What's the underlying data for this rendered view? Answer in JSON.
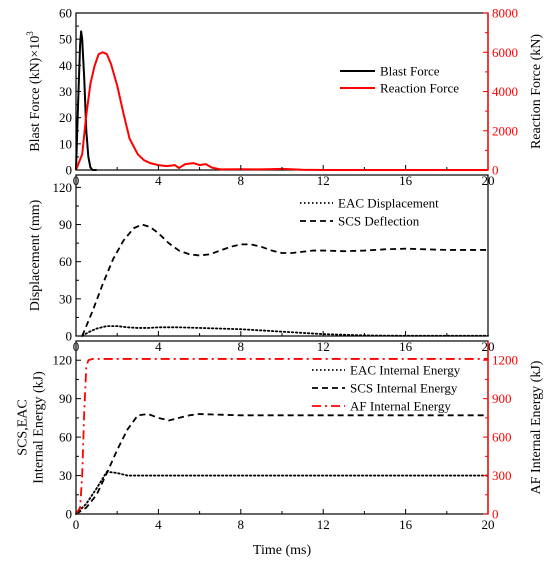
{
  "chart_data": [
    {
      "type": "line",
      "title": "",
      "xlabel": "",
      "xlim": [
        0,
        20
      ],
      "x_ticks": [
        "0",
        "4",
        "8",
        "12",
        "16",
        "20"
      ],
      "ylabel": "Blast Force (kN)×10³",
      "ylabel_main": "Blast Force (kN)×10",
      "ylabel_sup": "3",
      "ylim": [
        0,
        60
      ],
      "y_ticks": [
        "0",
        "10",
        "20",
        "30",
        "40",
        "50",
        "60"
      ],
      "ylabel_right": "Reaction Force (kN)",
      "ylim_right": [
        0,
        8000
      ],
      "y_ticks_right": [
        "0",
        "2000",
        "4000",
        "6000",
        "8000"
      ],
      "right_axis_color": "#ff0000",
      "legend_position": "right",
      "grid": false,
      "series": [
        {
          "name": "Blast Force",
          "axis": "left",
          "color": "#000000",
          "style": "solid",
          "x": [
            0,
            0.1,
            0.2,
            0.25,
            0.3,
            0.4,
            0.5,
            0.6,
            0.7,
            0.8,
            1.0
          ],
          "y": [
            0,
            25,
            48,
            53,
            50,
            35,
            15,
            5,
            1,
            0,
            0
          ]
        },
        {
          "name": "Reaction Force",
          "axis": "right",
          "color": "#ff0000",
          "style": "solid",
          "x": [
            0,
            0.3,
            0.5,
            0.7,
            0.9,
            1.1,
            1.3,
            1.5,
            1.7,
            2.0,
            2.3,
            2.6,
            3.0,
            3.3,
            3.6,
            4.0,
            4.4,
            4.8,
            5.0,
            5.3,
            5.7,
            6.0,
            6.3,
            6.6,
            7.0,
            8.0,
            9.0,
            10.0,
            11.0,
            12.0,
            20.0
          ],
          "y": [
            0,
            800,
            2800,
            4400,
            5300,
            5900,
            6000,
            5900,
            5400,
            4300,
            2900,
            1600,
            800,
            500,
            350,
            250,
            200,
            250,
            100,
            300,
            350,
            250,
            300,
            120,
            30,
            40,
            30,
            60,
            10,
            0,
            0
          ]
        }
      ]
    },
    {
      "type": "line",
      "title": "",
      "xlabel": "",
      "xlim": [
        0,
        20
      ],
      "x_ticks": [
        "0",
        "4",
        "8",
        "12",
        "16",
        "20"
      ],
      "ylabel": "Displacement (mm)",
      "ylim": [
        0,
        130
      ],
      "y_ticks": [
        "0",
        "30",
        "60",
        "90",
        "120"
      ],
      "legend_position": "top-right",
      "grid": false,
      "series": [
        {
          "name": "EAC Displacement",
          "axis": "left",
          "color": "#000000",
          "style": "dotted",
          "x": [
            0.3,
            0.6,
            1.0,
            1.5,
            2.0,
            2.5,
            3.0,
            3.5,
            4.0,
            5.0,
            6.0,
            7.0,
            8.0,
            9.0,
            10.0,
            11.0,
            12.0,
            13.0,
            14.0,
            15.0,
            16.0,
            17.0,
            18.0,
            19.0,
            20.0
          ],
          "y": [
            0,
            3,
            6,
            8,
            8,
            7,
            6.5,
            6.5,
            7,
            7,
            6.5,
            6,
            5.5,
            4.5,
            3.5,
            2.5,
            1.5,
            1,
            0.5,
            0.3,
            0.2,
            0.2,
            0.2,
            0.2,
            0.2
          ]
        },
        {
          "name": "SCS Deflection",
          "axis": "left",
          "color": "#000000",
          "style": "dashed",
          "x": [
            0.3,
            0.8,
            1.3,
            1.8,
            2.3,
            2.8,
            3.2,
            3.6,
            4.0,
            4.5,
            5.0,
            5.5,
            6.0,
            6.5,
            7.0,
            7.5,
            8.0,
            8.5,
            9.0,
            9.5,
            10.0,
            10.5,
            11.0,
            11.5,
            12.0,
            13.0,
            14.0,
            15.0,
            16.0,
            17.0,
            18.0,
            19.0,
            20.0
          ],
          "y": [
            0,
            20,
            42,
            62,
            77,
            87,
            90,
            88,
            83,
            75,
            69,
            66,
            65,
            66,
            69,
            72,
            74,
            74,
            72,
            69,
            67,
            67,
            68,
            69,
            69,
            68.5,
            69,
            70,
            70.5,
            70,
            69.5,
            69.5,
            69.5
          ]
        }
      ]
    },
    {
      "type": "line",
      "title": "",
      "xlabel": "Time (ms)",
      "xlim": [
        0,
        20
      ],
      "x_ticks": [
        "0",
        "4",
        "8",
        "12",
        "16",
        "20"
      ],
      "ylabel": "SCS,EAC Internal Energy (kJ)",
      "ylabel_lines": [
        "SCS,EAC",
        "Internal Energy (kJ)"
      ],
      "ylim": [
        0,
        135
      ],
      "y_ticks": [
        "0",
        "30",
        "60",
        "90",
        "120"
      ],
      "ylabel_right": "AF Internal Energy (kJ)",
      "ylim_right": [
        0,
        1350
      ],
      "y_ticks_right": [
        "0",
        "300",
        "600",
        "900",
        "1200"
      ],
      "right_axis_color": "#ff0000",
      "legend_position": "top-right",
      "grid": false,
      "series": [
        {
          "name": "EAC Internal Energy",
          "axis": "left",
          "color": "#000000",
          "style": "dotted",
          "x": [
            0,
            0.5,
            1.0,
            1.5,
            2.0,
            2.5,
            3.0,
            4.0,
            6.0,
            8.0,
            12.0,
            16.0,
            20.0
          ],
          "y": [
            0,
            8,
            20,
            33,
            32,
            30,
            30,
            30,
            30,
            30,
            30,
            30,
            30
          ]
        },
        {
          "name": "SCS Internal Energy",
          "axis": "left",
          "color": "#000000",
          "style": "dashed",
          "x": [
            0,
            0.5,
            1.0,
            1.5,
            2.0,
            2.5,
            3.0,
            3.5,
            4.0,
            4.5,
            5.0,
            5.5,
            6.0,
            7.0,
            8.0,
            10.0,
            12.0,
            16.0,
            20.0
          ],
          "y": [
            0,
            5,
            15,
            32,
            50,
            66,
            77,
            78,
            75,
            73,
            75,
            77,
            78,
            77.5,
            77,
            77,
            77,
            77,
            77
          ]
        },
        {
          "name": "AF Internal Energy",
          "axis": "right",
          "color": "#ff0000",
          "style": "dashdot",
          "x": [
            0,
            0.2,
            0.3,
            0.4,
            0.5,
            0.6,
            0.8,
            1.0,
            2.0,
            5.0,
            10.0,
            15.0,
            20.0
          ],
          "y": [
            0,
            50,
            300,
            800,
            1150,
            1200,
            1210,
            1210,
            1210,
            1210,
            1210,
            1210,
            1210
          ]
        }
      ]
    }
  ]
}
